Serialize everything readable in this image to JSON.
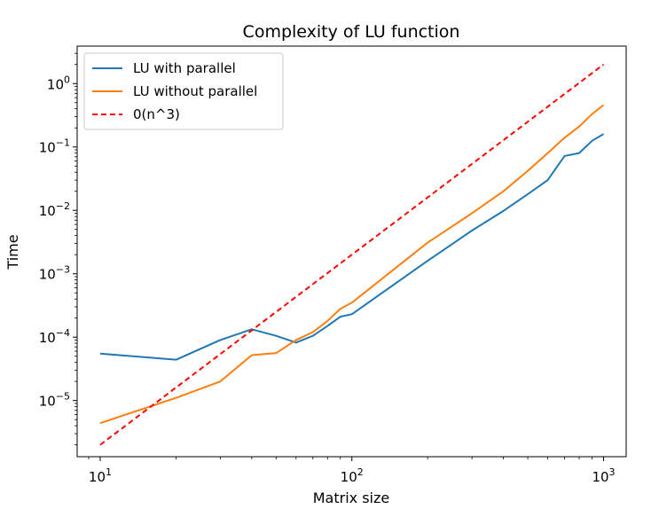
{
  "chart_data": {
    "type": "line",
    "title": "Complexity of LU function",
    "xlabel": "Matrix size",
    "ylabel": "Time",
    "xscale": "log",
    "yscale": "log",
    "xlim": [
      8.1,
      1230
    ],
    "ylim": [
      1.3e-06,
      3.9
    ],
    "x_ticks": [
      {
        "base": "10",
        "exp": "1",
        "value": 10
      },
      {
        "base": "10",
        "exp": "2",
        "value": 100
      },
      {
        "base": "10",
        "exp": "3",
        "value": 1000
      }
    ],
    "y_ticks": [
      {
        "base": "10",
        "exp": "−5",
        "value": 1e-05
      },
      {
        "base": "10",
        "exp": "−4",
        "value": 0.0001
      },
      {
        "base": "10",
        "exp": "−3",
        "value": 0.001
      },
      {
        "base": "10",
        "exp": "−2",
        "value": 0.01
      },
      {
        "base": "10",
        "exp": "−1",
        "value": 0.1
      },
      {
        "base": "10",
        "exp": "0",
        "value": 1
      }
    ],
    "grid": false,
    "legend_position": "top-left",
    "series": [
      {
        "name": "LU with parallel",
        "color": "#1f77b4",
        "style": "solid",
        "x": [
          10,
          20,
          30,
          40,
          50,
          60,
          70,
          80,
          90,
          100,
          200,
          300,
          400,
          500,
          600,
          700,
          800,
          900,
          1000
        ],
        "y": [
          5.5e-05,
          4.4e-05,
          9e-05,
          0.000133,
          0.000105,
          8.2e-05,
          0.000105,
          0.00015,
          0.00021,
          0.00023,
          0.0016,
          0.0048,
          0.0098,
          0.018,
          0.03,
          0.072,
          0.08,
          0.125,
          0.16
        ]
      },
      {
        "name": "LU without parallel",
        "color": "#ff7f0e",
        "style": "solid",
        "x": [
          10,
          20,
          30,
          40,
          50,
          60,
          70,
          80,
          90,
          100,
          200,
          300,
          400,
          500,
          600,
          700,
          800,
          900,
          1000
        ],
        "y": [
          4.4e-06,
          1.1e-05,
          2e-05,
          5.2e-05,
          5.6e-05,
          9e-05,
          0.00012,
          0.00018,
          0.00028,
          0.00035,
          0.0031,
          0.009,
          0.02,
          0.042,
          0.08,
          0.14,
          0.21,
          0.33,
          0.46
        ]
      },
      {
        "name": "0(n^3)",
        "color": "#ff0000",
        "style": "dashed",
        "x": [
          10,
          1000
        ],
        "y": [
          2e-06,
          2.0
        ]
      }
    ]
  }
}
